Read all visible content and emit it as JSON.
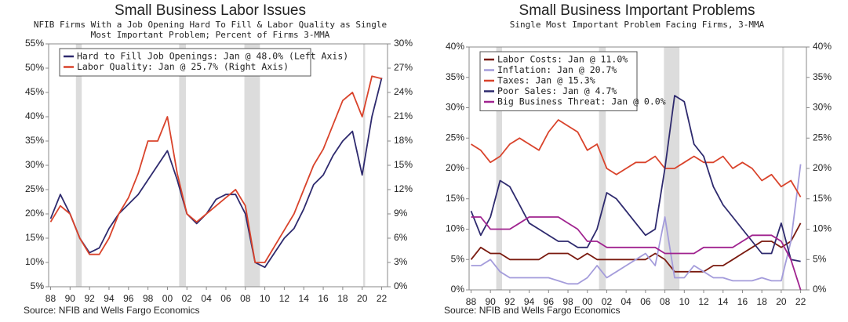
{
  "chart_data": [
    {
      "type": "line",
      "title": "Small Business Labor Issues",
      "subtitle": [
        "NFIB Firms With a Job Opening Hard To Fill & Labor Quality as Single",
        "Most Important Problem; Percent of Firms 3-MMA"
      ],
      "source": "Source: NFIB and Wells Fargo Economics",
      "x": [
        1988,
        1989,
        1990,
        1991,
        1992,
        1993,
        1994,
        1995,
        1996,
        1997,
        1998,
        1999,
        2000,
        2001,
        2002,
        2003,
        2004,
        2005,
        2006,
        2007,
        2008,
        2009,
        2010,
        2011,
        2012,
        2013,
        2014,
        2015,
        2016,
        2017,
        2018,
        2019,
        2020,
        2021,
        2022
      ],
      "xlim": [
        1987.8,
        2022.6
      ],
      "xticks": [
        {
          "value": 1988,
          "label": "88"
        },
        {
          "value": 1990,
          "label": "90"
        },
        {
          "value": 1992,
          "label": "92"
        },
        {
          "value": 1994,
          "label": "94"
        },
        {
          "value": 1996,
          "label": "96"
        },
        {
          "value": 1998,
          "label": "98"
        },
        {
          "value": 2000,
          "label": "00"
        },
        {
          "value": 2002,
          "label": "02"
        },
        {
          "value": 2004,
          "label": "04"
        },
        {
          "value": 2006,
          "label": "06"
        },
        {
          "value": 2008,
          "label": "08"
        },
        {
          "value": 2010,
          "label": "10"
        },
        {
          "value": 2012,
          "label": "12"
        },
        {
          "value": 2014,
          "label": "14"
        },
        {
          "value": 2016,
          "label": "16"
        },
        {
          "value": 2018,
          "label": "18"
        },
        {
          "value": 2020,
          "label": "20"
        },
        {
          "value": 2022,
          "label": "22"
        }
      ],
      "ylim": [
        5,
        55
      ],
      "yticks": [
        {
          "value": 5,
          "label": "5%"
        },
        {
          "value": 10,
          "label": "10%"
        },
        {
          "value": 15,
          "label": "15%"
        },
        {
          "value": 20,
          "label": "20%"
        },
        {
          "value": 25,
          "label": "25%"
        },
        {
          "value": 30,
          "label": "30%"
        },
        {
          "value": 35,
          "label": "35%"
        },
        {
          "value": 40,
          "label": "40%"
        },
        {
          "value": 45,
          "label": "45%"
        },
        {
          "value": 50,
          "label": "50%"
        },
        {
          "value": 55,
          "label": "55%"
        }
      ],
      "y2lim": [
        0,
        30
      ],
      "y2ticks": [
        {
          "value": 0,
          "label": "0%"
        },
        {
          "value": 3,
          "label": "3%"
        },
        {
          "value": 6,
          "label": "6%"
        },
        {
          "value": 9,
          "label": "9%"
        },
        {
          "value": 12,
          "label": "12%"
        },
        {
          "value": 15,
          "label": "15%"
        },
        {
          "value": 18,
          "label": "18%"
        },
        {
          "value": 21,
          "label": "21%"
        },
        {
          "value": 24,
          "label": "24%"
        },
        {
          "value": 27,
          "label": "27%"
        },
        {
          "value": 30,
          "label": "30%"
        }
      ],
      "recessions": [
        [
          1990.6,
          1991.2
        ],
        [
          2001.2,
          2001.9
        ],
        [
          2007.9,
          2009.5
        ],
        [
          2020.1,
          2020.3
        ]
      ],
      "series": [
        {
          "name": "Hard to Fill Job Openings: Jan @ 48.0% (Left Axis)",
          "color": "#2e2a6e",
          "axis": "y",
          "values": [
            19,
            24,
            20,
            15,
            12,
            13,
            17,
            20,
            22,
            24,
            27,
            30,
            33,
            27,
            20,
            18,
            20,
            23,
            24,
            24,
            20,
            10,
            9,
            12,
            15,
            17,
            21,
            26,
            28,
            32,
            35,
            37,
            28,
            40,
            48
          ]
        },
        {
          "name": "Labor Quality: Jan @ 25.7% (Right Axis)",
          "color": "#d9432b",
          "axis": "y2",
          "values": [
            8,
            10,
            9,
            6,
            4,
            4,
            6,
            9,
            11,
            14,
            18,
            18,
            21,
            14,
            9,
            8,
            9,
            10,
            11,
            12,
            10,
            3,
            3,
            5,
            7,
            9,
            12,
            15,
            17,
            20,
            23,
            24,
            21,
            26,
            25.7
          ]
        }
      ]
    },
    {
      "type": "line",
      "title": "Small Business Important Problems",
      "subtitle": [
        "Single Most Important Problem Facing Firms, 3-MMA"
      ],
      "source": "Source: NFIB and Wells Fargo Economics",
      "x": [
        1988,
        1989,
        1990,
        1991,
        1992,
        1993,
        1994,
        1995,
        1996,
        1997,
        1998,
        1999,
        2000,
        2001,
        2002,
        2003,
        2004,
        2005,
        2006,
        2007,
        2008,
        2009,
        2010,
        2011,
        2012,
        2013,
        2014,
        2015,
        2016,
        2017,
        2018,
        2019,
        2020,
        2021,
        2022
      ],
      "xlim": [
        1987.8,
        2022.6
      ],
      "xticks": [
        {
          "value": 1988,
          "label": "88"
        },
        {
          "value": 1990,
          "label": "90"
        },
        {
          "value": 1992,
          "label": "92"
        },
        {
          "value": 1994,
          "label": "94"
        },
        {
          "value": 1996,
          "label": "96"
        },
        {
          "value": 1998,
          "label": "98"
        },
        {
          "value": 2000,
          "label": "00"
        },
        {
          "value": 2002,
          "label": "02"
        },
        {
          "value": 2004,
          "label": "04"
        },
        {
          "value": 2006,
          "label": "06"
        },
        {
          "value": 2008,
          "label": "08"
        },
        {
          "value": 2010,
          "label": "10"
        },
        {
          "value": 2012,
          "label": "12"
        },
        {
          "value": 2014,
          "label": "14"
        },
        {
          "value": 2016,
          "label": "16"
        },
        {
          "value": 2018,
          "label": "18"
        },
        {
          "value": 2020,
          "label": "20"
        },
        {
          "value": 2022,
          "label": "22"
        }
      ],
      "ylim": [
        0,
        40
      ],
      "yticks": [
        {
          "value": 0,
          "label": "0%"
        },
        {
          "value": 5,
          "label": "5%"
        },
        {
          "value": 10,
          "label": "10%"
        },
        {
          "value": 15,
          "label": "15%"
        },
        {
          "value": 20,
          "label": "20%"
        },
        {
          "value": 25,
          "label": "25%"
        },
        {
          "value": 30,
          "label": "30%"
        },
        {
          "value": 35,
          "label": "35%"
        },
        {
          "value": 40,
          "label": "40%"
        }
      ],
      "y2lim": [
        0,
        40
      ],
      "y2ticks": [
        {
          "value": 0,
          "label": "0%"
        },
        {
          "value": 5,
          "label": "5%"
        },
        {
          "value": 10,
          "label": "10%"
        },
        {
          "value": 15,
          "label": "15%"
        },
        {
          "value": 20,
          "label": "20%"
        },
        {
          "value": 25,
          "label": "25%"
        },
        {
          "value": 30,
          "label": "30%"
        },
        {
          "value": 35,
          "label": "35%"
        },
        {
          "value": 40,
          "label": "40%"
        }
      ],
      "recessions": [
        [
          1990.6,
          1991.2
        ],
        [
          2001.2,
          2001.9
        ],
        [
          2007.9,
          2009.5
        ],
        [
          2020.1,
          2020.3
        ]
      ],
      "series": [
        {
          "name": "Labor Costs: Jan @ 11.0%",
          "color": "#7a1a0f",
          "axis": "y",
          "values": [
            5,
            7,
            6,
            6,
            5,
            5,
            5,
            5,
            6,
            6,
            6,
            5,
            6,
            5,
            5,
            5,
            5,
            5,
            5,
            6,
            5,
            3,
            3,
            3,
            3,
            4,
            4,
            5,
            6,
            7,
            8,
            8,
            7,
            8,
            11
          ]
        },
        {
          "name": "Inflation: Jan @ 20.7%",
          "color": "#a49cdb",
          "axis": "y",
          "values": [
            4,
            4,
            5,
            3,
            2,
            2,
            2,
            2,
            2,
            1.5,
            1,
            1,
            2,
            4,
            2,
            3,
            4,
            5,
            6,
            4,
            12,
            2,
            2,
            4,
            3,
            2,
            2,
            1.5,
            1.5,
            1.5,
            2,
            1.5,
            1.5,
            8,
            20.7
          ]
        },
        {
          "name": "Taxes: Jan @ 15.3%",
          "color": "#d9432b",
          "axis": "y",
          "values": [
            24,
            23,
            21,
            22,
            24,
            25,
            24,
            23,
            26,
            28,
            27,
            26,
            23,
            24,
            20,
            19,
            20,
            21,
            21,
            22,
            20,
            20,
            21,
            22,
            21,
            21,
            22,
            20,
            21,
            20,
            18,
            19,
            17,
            18,
            15.3
          ]
        },
        {
          "name": "Poor Sales: Jan @ 4.7%",
          "color": "#2e2a6e",
          "axis": "y",
          "values": [
            13,
            9,
            12,
            18,
            17,
            14,
            11,
            10,
            9,
            8,
            8,
            7,
            7,
            10,
            16,
            15,
            13,
            11,
            9,
            10,
            20,
            32,
            31,
            24,
            22,
            17,
            14,
            12,
            10,
            8,
            6,
            6,
            11,
            5,
            4.7
          ]
        },
        {
          "name": "Big Business Threat: Jan @ 0.0%",
          "color": "#a0238f",
          "axis": "y",
          "values": [
            12,
            12,
            10,
            10,
            10,
            11,
            12,
            12,
            12,
            12,
            11,
            10,
            8,
            8,
            7,
            7,
            7,
            7,
            7,
            7,
            6,
            6,
            6,
            6,
            7,
            7,
            7,
            7,
            8,
            9,
            9,
            9,
            8,
            5,
            0
          ]
        }
      ]
    }
  ]
}
